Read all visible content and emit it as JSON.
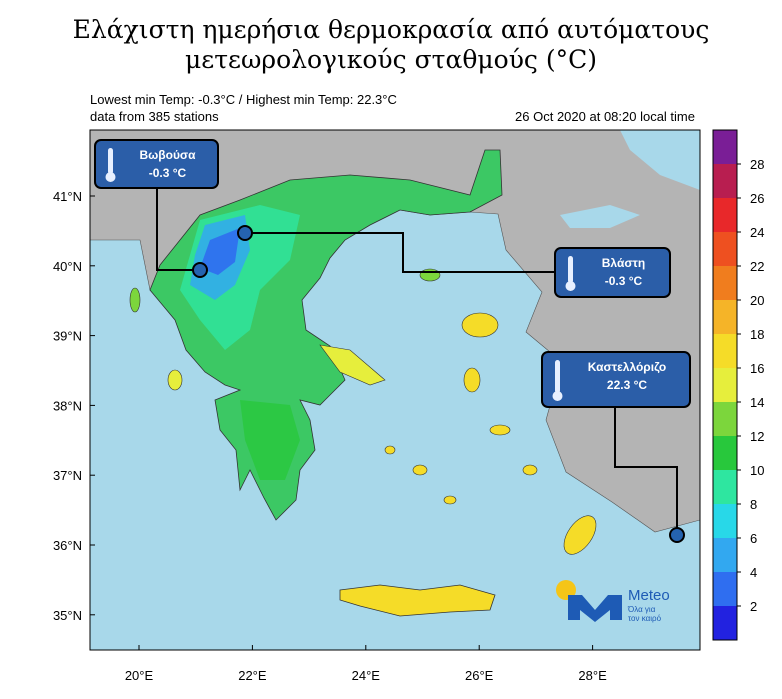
{
  "title": [
    "Ελάχιστη ημερήσια θερμοκρασία από αυτόματους",
    "μετεωρολογικούς σταθμούς (°C)"
  ],
  "info": {
    "temp_range": "Lowest min Temp: -0.3°C / Highest min Temp: 22.3°C",
    "stations": "data from 385 stations",
    "time": "26 Oct 2020 at 08:20 local time"
  },
  "lat_labels": [
    {
      "value": 41,
      "label": "41°N"
    },
    {
      "value": 40,
      "label": "40°N"
    },
    {
      "value": 39,
      "label": "39°N"
    },
    {
      "value": 38,
      "label": "38°N"
    },
    {
      "value": 37,
      "label": "37°N"
    },
    {
      "value": 36,
      "label": "36°N"
    },
    {
      "value": 35,
      "label": "35°N"
    }
  ],
  "lon_labels": [
    {
      "value": 20,
      "label": "20°E"
    },
    {
      "value": 22,
      "label": "22°E"
    },
    {
      "value": 24,
      "label": "24°E"
    },
    {
      "value": 26,
      "label": "26°E"
    },
    {
      "value": 28,
      "label": "28°E"
    }
  ],
  "colorbar": {
    "range": [
      0,
      30
    ],
    "ticks": [
      2,
      4,
      6,
      8,
      10,
      12,
      14,
      16,
      18,
      20,
      22,
      24,
      26,
      28
    ],
    "colors": [
      "#2222e0",
      "#2f6ef0",
      "#32a8f0",
      "#28d8e8",
      "#2ee6a0",
      "#28c83c",
      "#7cd63c",
      "#e6ee3c",
      "#f5dc28",
      "#f5b428",
      "#f07d1e",
      "#ee5020",
      "#e8282a",
      "#b81e50",
      "#7a1e96"
    ]
  },
  "callouts": [
    {
      "name": "Βωβούσα",
      "value": "-0.3 °C"
    },
    {
      "name": "Βλάστη",
      "value": "-0.3 °C"
    },
    {
      "name": "Καστελλόριζο",
      "value": "22.3 °C"
    }
  ],
  "logo": {
    "name": "Meteo",
    "tagline": [
      "Όλα για",
      "τον καιρό"
    ]
  }
}
